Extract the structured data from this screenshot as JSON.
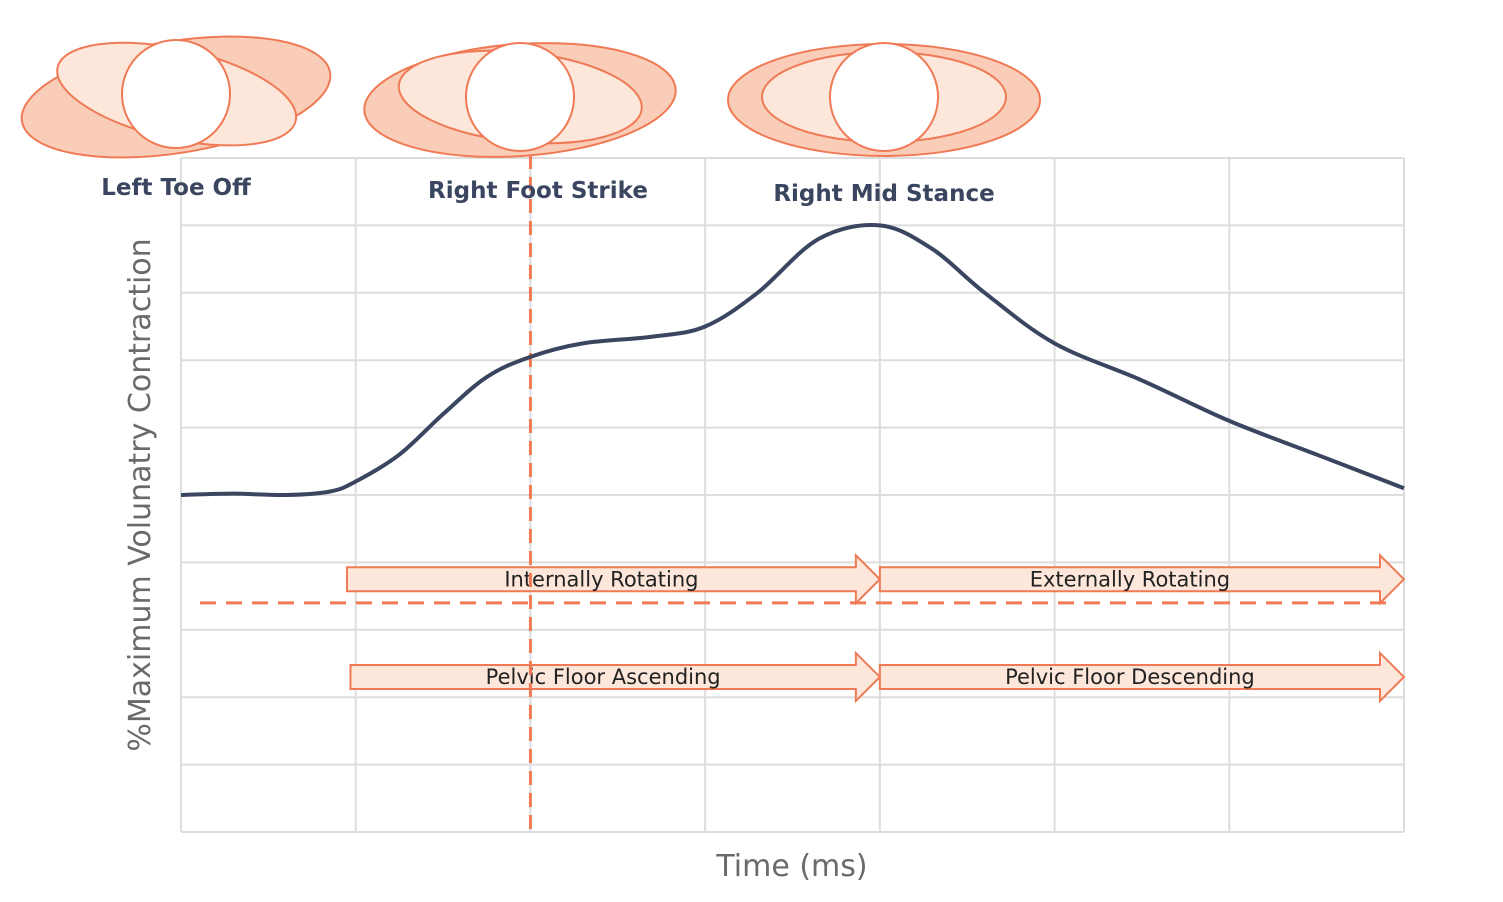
{
  "chart_data": {
    "type": "line",
    "title": "",
    "xlabel": "Time (ms)",
    "ylabel": "%Maximum Volunatry Contraction",
    "grid": true,
    "x_grid_lines": 7,
    "y_grid_lines": 10,
    "xlim": [
      0,
      7
    ],
    "ylim": [
      0,
      10
    ],
    "series": [
      {
        "values": [
          [
            0.0,
            5.0
          ],
          [
            0.3,
            5.02
          ],
          [
            0.6,
            5.0
          ],
          [
            0.85,
            5.05
          ],
          [
            1.0,
            5.2
          ],
          [
            1.25,
            5.6
          ],
          [
            1.5,
            6.2
          ],
          [
            1.75,
            6.75
          ],
          [
            2.0,
            7.05
          ],
          [
            2.3,
            7.25
          ],
          [
            2.7,
            7.35
          ],
          [
            3.0,
            7.5
          ],
          [
            3.3,
            8.0
          ],
          [
            3.65,
            8.8
          ],
          [
            4.0,
            9.0
          ],
          [
            4.3,
            8.65
          ],
          [
            4.6,
            8.0
          ],
          [
            5.0,
            7.25
          ],
          [
            5.5,
            6.7
          ],
          [
            6.0,
            6.1
          ],
          [
            6.5,
            5.6
          ],
          [
            7.0,
            5.1
          ]
        ],
        "color": "#3a4560"
      }
    ],
    "markers": [
      {
        "label": "Left Toe Off",
        "x": 0.0
      },
      {
        "label": "Right Foot Strike",
        "x": 2.0,
        "line": "dashed"
      },
      {
        "label": "Right Mid Stance",
        "x": 4.0
      }
    ],
    "horizontal_reference": {
      "y": 3.4,
      "style": "dashed"
    },
    "bands": [
      {
        "label": "Internally Rotating",
        "x_start": 0.95,
        "x_end": 4.0,
        "y": 3.75
      },
      {
        "label": "Externally Rotating",
        "x_start": 4.0,
        "x_end": 7.0,
        "y": 3.75
      },
      {
        "label": "Pelvic Floor Ascending",
        "x_start": 0.97,
        "x_end": 4.0,
        "y": 2.3
      },
      {
        "label": "Pelvic Floor Descending",
        "x_start": 4.0,
        "x_end": 7.0,
        "y": 2.3
      }
    ],
    "pelvis_icons": [
      {
        "phase": "Left Toe Off",
        "rotation": "tilted"
      },
      {
        "phase": "Right Foot Strike",
        "rotation": "slight"
      },
      {
        "phase": "Right Mid Stance",
        "rotation": "level"
      }
    ]
  },
  "colors": {
    "curve": "#3a4560",
    "accent": "#ef7a55",
    "fill_light": "#fde6da",
    "fill_dark": "#f9cdb8",
    "grid": "#dddddd",
    "label": "#3a4560",
    "axis_text": "#6a6a6a"
  }
}
